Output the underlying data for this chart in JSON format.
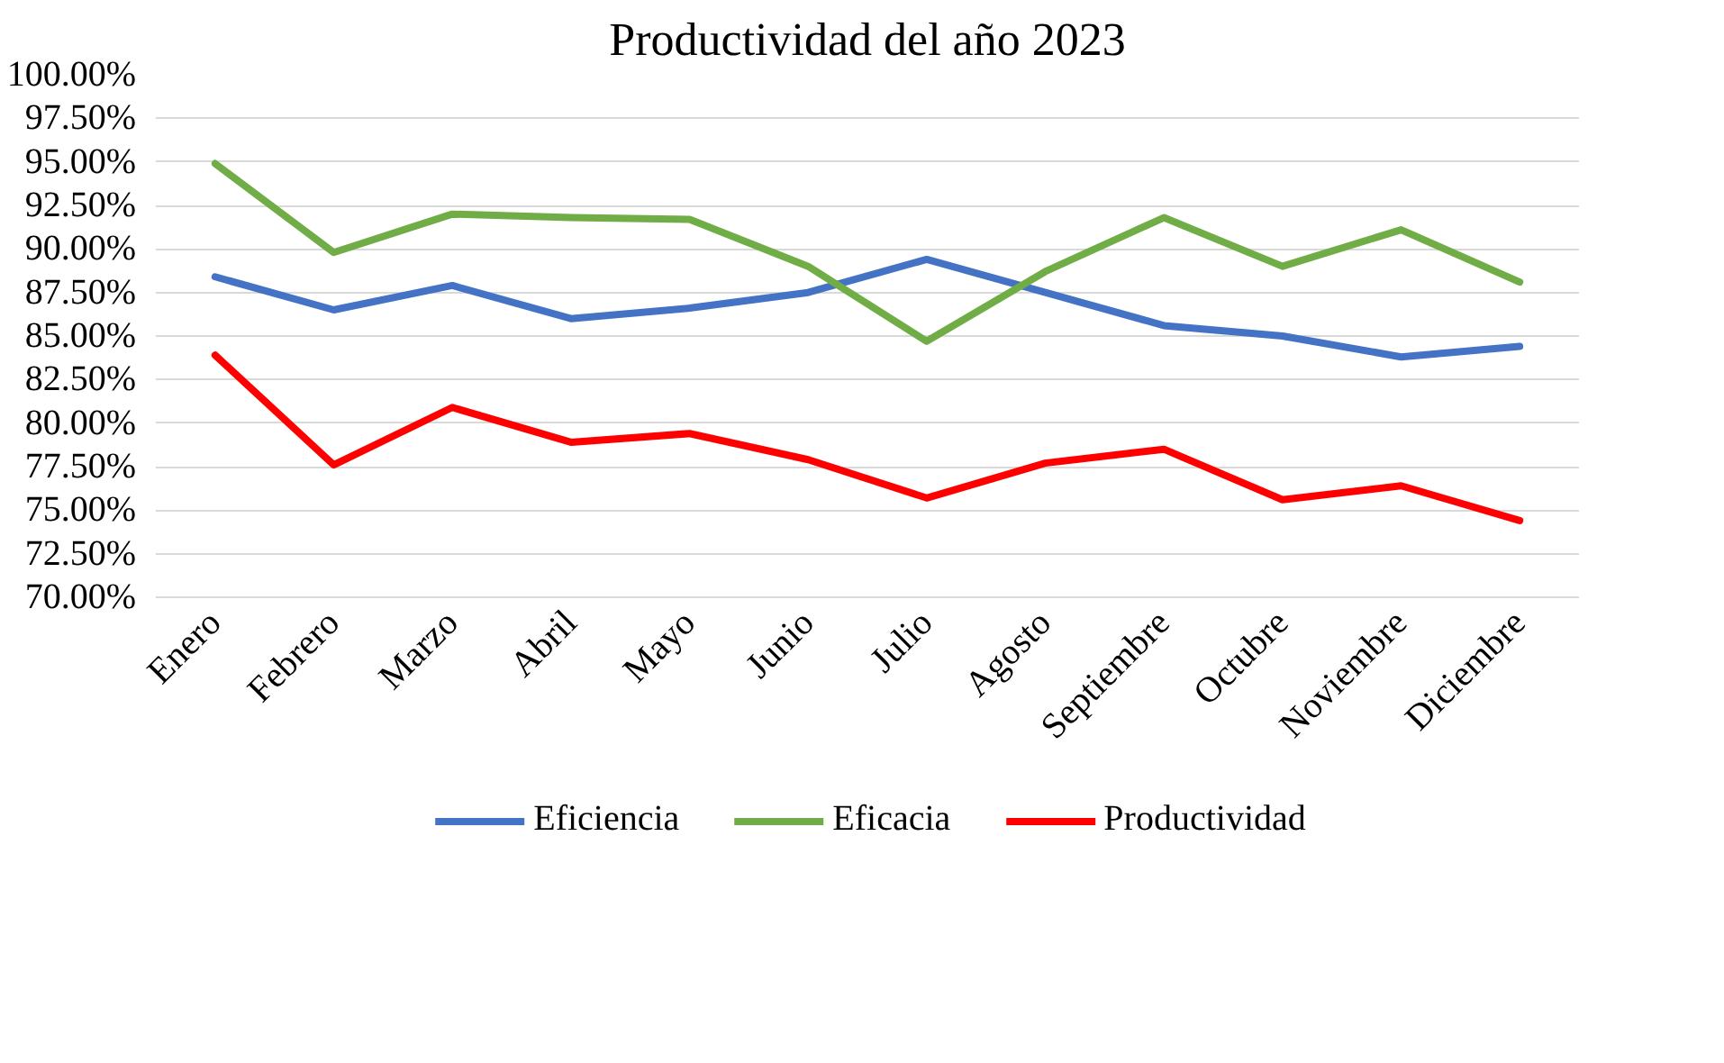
{
  "chart_data": {
    "type": "line",
    "title": "Productividad del año 2023",
    "categories": [
      "Enero",
      "Febrero",
      "Marzo",
      "Abril",
      "Mayo",
      "Junio",
      "Julio",
      "Agosto",
      "Septiembre",
      "Octubre",
      "Noviembre",
      "Diciembre"
    ],
    "series": [
      {
        "name": "Eficiencia",
        "color": "#4472c4",
        "values": [
          88.4,
          86.5,
          87.9,
          86.0,
          86.6,
          87.5,
          89.4,
          87.5,
          85.6,
          85.0,
          83.8,
          84.4
        ]
      },
      {
        "name": "Eficacia",
        "color": "#70ad47",
        "values": [
          94.9,
          89.8,
          92.0,
          91.8,
          91.7,
          89.0,
          84.7,
          88.7,
          91.8,
          89.0,
          91.1,
          88.1
        ]
      },
      {
        "name": "Productividad",
        "color": "#ff0000",
        "values": [
          83.9,
          77.6,
          80.9,
          78.9,
          79.4,
          77.9,
          75.7,
          77.7,
          78.5,
          75.6,
          76.4,
          74.4
        ]
      }
    ],
    "ylim": [
      70,
      100
    ],
    "yticks": [
      {
        "value": 70,
        "label": "70.00%"
      },
      {
        "value": 72.5,
        "label": "72.50%"
      },
      {
        "value": 75,
        "label": "75.00%"
      },
      {
        "value": 77.5,
        "label": "77.50%"
      },
      {
        "value": 80,
        "label": "80.00%"
      },
      {
        "value": 82.5,
        "label": "82.50%"
      },
      {
        "value": 85,
        "label": "85.00%"
      },
      {
        "value": 87.5,
        "label": "87.50%"
      },
      {
        "value": 90,
        "label": "90.00%"
      },
      {
        "value": 92.5,
        "label": "92.50%"
      },
      {
        "value": 95,
        "label": "95.00%"
      },
      {
        "value": 97.5,
        "label": "97.50%"
      },
      {
        "value": 100,
        "label": "100.00%"
      }
    ],
    "grid": "y",
    "legend": "bottom",
    "marker": "none",
    "line_style": "solid"
  }
}
